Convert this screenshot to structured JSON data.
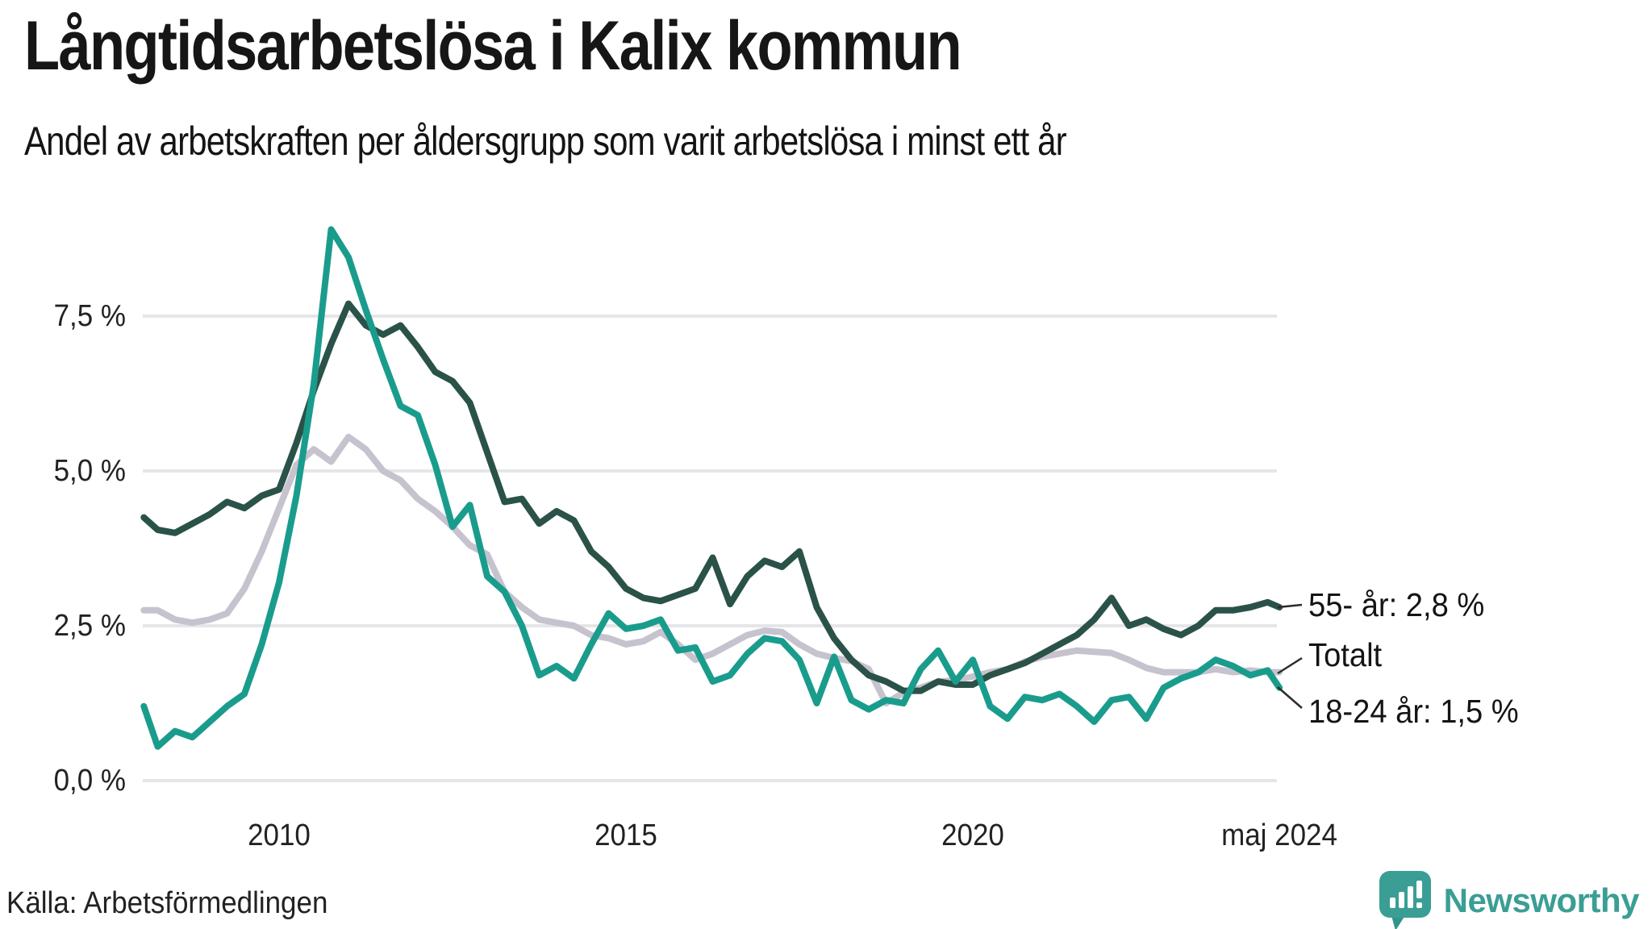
{
  "header": {
    "title": "Långtidsarbetslösa i Kalix kommun",
    "subtitle": "Andel av arbetskraften per åldersgrupp som varit arbetslösa i minst ett år"
  },
  "axes": {
    "y_ticks": [
      {
        "label": "7,5 %",
        "value": 7.5
      },
      {
        "label": "5,0 %",
        "value": 5.0
      },
      {
        "label": "2,5 %",
        "value": 2.5
      },
      {
        "label": "0,0 %",
        "value": 0.0
      }
    ],
    "x_ticks": [
      {
        "label": "2010",
        "t": 2010
      },
      {
        "label": "2015",
        "t": 2015
      },
      {
        "label": "2020",
        "t": 2020
      },
      {
        "label": "maj 2024",
        "t": 2024.42
      }
    ]
  },
  "end_labels": [
    {
      "text": "55- år: 2,8 %"
    },
    {
      "text": "Totalt"
    },
    {
      "text": "18-24 år: 1,5 %"
    }
  ],
  "footer": {
    "source": "Källa: Arbetsförmedlingen",
    "brand": "Newsworthy"
  },
  "colors": {
    "series_55": "#2a5248",
    "series_total": "#c6c3ce",
    "series_18_24": "#1a9c8d",
    "gridline": "#e6e5e9",
    "connector": "#2b2b2b",
    "brand_teal": "#3b9e94",
    "text": "#1a1a1a"
  },
  "chart_data": {
    "type": "line",
    "title": "Långtidsarbetslösa i Kalix kommun",
    "subtitle": "Andel av arbetskraften per åldersgrupp som varit arbetslösa i minst ett år",
    "x_unit": "decimal_year",
    "x_range": [
      2008.05,
      2024.42
    ],
    "ylim": [
      0,
      9.2
    ],
    "grid": "horizontal",
    "legend_position": "right-end-labels",
    "x": [
      2008.05,
      2008.25,
      2008.5,
      2008.75,
      2009.0,
      2009.25,
      2009.5,
      2009.75,
      2010.0,
      2010.25,
      2010.5,
      2010.75,
      2011.0,
      2011.25,
      2011.5,
      2011.75,
      2012.0,
      2012.25,
      2012.5,
      2012.75,
      2013.0,
      2013.25,
      2013.5,
      2013.75,
      2014.0,
      2014.25,
      2014.5,
      2014.75,
      2015.0,
      2015.25,
      2015.5,
      2015.75,
      2016.0,
      2016.25,
      2016.5,
      2016.75,
      2017.0,
      2017.25,
      2017.5,
      2017.75,
      2018.0,
      2018.25,
      2018.5,
      2018.75,
      2019.0,
      2019.25,
      2019.5,
      2019.75,
      2020.0,
      2020.25,
      2020.5,
      2020.75,
      2021.0,
      2021.25,
      2021.5,
      2021.75,
      2022.0,
      2022.25,
      2022.5,
      2022.75,
      2023.0,
      2023.25,
      2023.5,
      2023.75,
      2024.0,
      2024.25,
      2024.42
    ],
    "draw_order": [
      1,
      0,
      2
    ],
    "series": [
      {
        "name": "55- år",
        "end_label": "55- år: 2,8 %",
        "end_value": 2.8,
        "color": "#2a5248",
        "values": [
          4.25,
          4.05,
          4.0,
          4.15,
          4.3,
          4.5,
          4.4,
          4.6,
          4.7,
          5.45,
          6.3,
          7.05,
          7.7,
          7.35,
          7.2,
          7.35,
          7.0,
          6.6,
          6.45,
          6.1,
          5.3,
          4.5,
          4.55,
          4.15,
          4.35,
          4.2,
          3.7,
          3.45,
          3.1,
          2.95,
          2.9,
          3.0,
          3.1,
          3.6,
          2.85,
          3.3,
          3.55,
          3.45,
          3.7,
          2.8,
          2.3,
          1.95,
          1.7,
          1.6,
          1.45,
          1.45,
          1.6,
          1.55,
          1.55,
          1.7,
          1.8,
          1.9,
          2.05,
          2.2,
          2.35,
          2.6,
          2.95,
          2.5,
          2.6,
          2.45,
          2.35,
          2.5,
          2.75,
          2.75,
          2.8,
          2.88,
          2.8
        ]
      },
      {
        "name": "Totalt",
        "end_label": "Totalt",
        "end_value": 1.75,
        "color": "#c6c3ce",
        "values": [
          2.75,
          2.75,
          2.6,
          2.55,
          2.6,
          2.7,
          3.1,
          3.7,
          4.4,
          5.1,
          5.35,
          5.15,
          5.55,
          5.35,
          5.0,
          4.85,
          4.55,
          4.35,
          4.1,
          3.8,
          3.65,
          3.05,
          2.8,
          2.6,
          2.55,
          2.5,
          2.35,
          2.3,
          2.2,
          2.25,
          2.4,
          2.2,
          1.95,
          2.05,
          2.2,
          2.35,
          2.42,
          2.4,
          2.2,
          2.05,
          1.98,
          1.93,
          1.8,
          1.25,
          1.42,
          1.5,
          1.6,
          1.62,
          1.68,
          1.75,
          1.8,
          1.92,
          2.0,
          2.05,
          2.1,
          2.08,
          2.06,
          1.95,
          1.82,
          1.75,
          1.75,
          1.75,
          1.8,
          1.75,
          1.78,
          1.75,
          1.75
        ]
      },
      {
        "name": "18-24 år",
        "end_label": "18-24 år: 1,5 %",
        "end_value": 1.5,
        "color": "#1a9c8d",
        "values": [
          1.2,
          0.55,
          0.8,
          0.7,
          0.95,
          1.2,
          1.4,
          2.2,
          3.2,
          4.6,
          6.4,
          8.9,
          8.45,
          7.6,
          6.8,
          6.05,
          5.9,
          5.1,
          4.1,
          4.45,
          3.3,
          3.05,
          2.5,
          1.7,
          1.85,
          1.65,
          2.2,
          2.7,
          2.45,
          2.5,
          2.6,
          2.1,
          2.15,
          1.6,
          1.7,
          2.05,
          2.3,
          2.25,
          1.95,
          1.25,
          2.0,
          1.3,
          1.15,
          1.3,
          1.25,
          1.8,
          2.1,
          1.6,
          1.95,
          1.2,
          1.0,
          1.35,
          1.3,
          1.4,
          1.2,
          0.95,
          1.3,
          1.35,
          1.0,
          1.5,
          1.65,
          1.75,
          1.95,
          1.85,
          1.7,
          1.78,
          1.5
        ]
      }
    ]
  }
}
